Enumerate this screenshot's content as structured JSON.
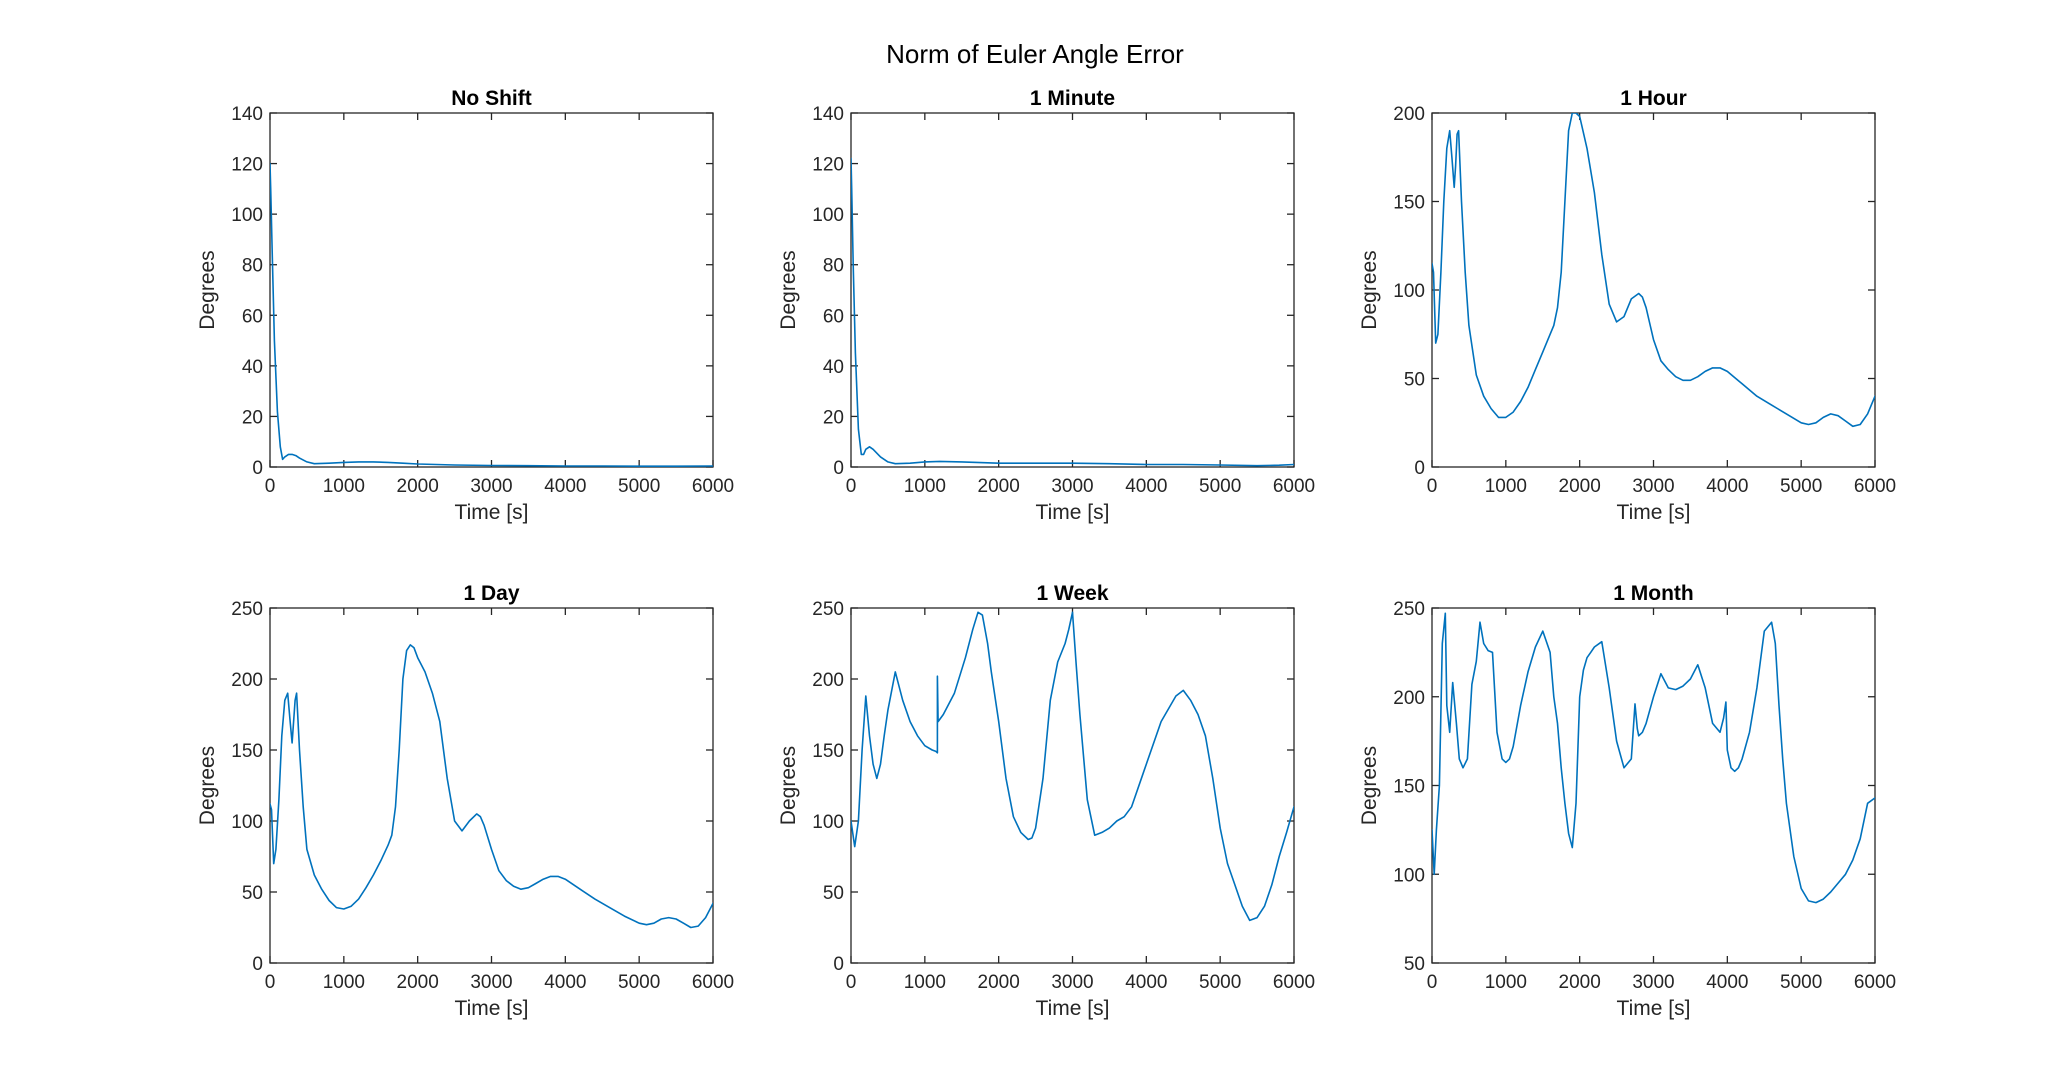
{
  "figure": {
    "title": "Norm of Euler Angle Error",
    "line_color": "#0072BD"
  },
  "chart_data": [
    {
      "type": "line",
      "title": "No Shift",
      "xlabel": "Time [s]",
      "ylabel": "Degrees",
      "xlim": [
        0,
        6000
      ],
      "ylim": [
        0,
        140
      ],
      "xticks": [
        0,
        1000,
        2000,
        3000,
        4000,
        5000,
        6000
      ],
      "yticks": [
        0,
        20,
        40,
        60,
        80,
        100,
        120,
        140
      ],
      "grid": false,
      "series": [
        {
          "x": [
            0,
            10,
            30,
            60,
            100,
            140,
            170,
            200,
            250,
            300,
            350,
            400,
            500,
            600,
            800,
            1000,
            1200,
            1400,
            1600,
            1800,
            2000,
            2500,
            3000,
            3500,
            4000,
            4500,
            5000,
            5500,
            6000
          ],
          "y": [
            120,
            110,
            85,
            50,
            22,
            8,
            3,
            4,
            5,
            5,
            4.5,
            3.5,
            2,
            1.3,
            1.5,
            1.8,
            2,
            2,
            1.8,
            1.5,
            1.2,
            0.8,
            0.6,
            0.5,
            0.4,
            0.4,
            0.3,
            0.3,
            0.4
          ]
        }
      ]
    },
    {
      "type": "line",
      "title": "1 Minute",
      "xlabel": "Time [s]",
      "ylabel": "Degrees",
      "xlim": [
        0,
        6000
      ],
      "ylim": [
        0,
        140
      ],
      "xticks": [
        0,
        1000,
        2000,
        3000,
        4000,
        5000,
        6000
      ],
      "yticks": [
        0,
        20,
        40,
        60,
        80,
        100,
        120,
        140
      ],
      "grid": false,
      "series": [
        {
          "x": [
            0,
            10,
            30,
            60,
            100,
            140,
            170,
            200,
            250,
            300,
            400,
            500,
            600,
            800,
            1000,
            1200,
            1500,
            2000,
            2500,
            3000,
            3500,
            4000,
            4500,
            5000,
            5500,
            5800,
            6000
          ],
          "y": [
            122,
            110,
            80,
            45,
            15,
            5,
            5,
            7,
            8,
            7,
            4,
            2,
            1.3,
            1.5,
            2,
            2.2,
            2,
            1.5,
            1.5,
            1.5,
            1.3,
            1,
            1,
            0.8,
            0.5,
            0.7,
            1
          ]
        }
      ]
    },
    {
      "type": "line",
      "title": "1 Hour",
      "xlabel": "Time [s]",
      "ylabel": "Degrees",
      "xlim": [
        0,
        6000
      ],
      "ylim": [
        0,
        200
      ],
      "xticks": [
        0,
        1000,
        2000,
        3000,
        4000,
        5000,
        6000
      ],
      "yticks": [
        0,
        50,
        100,
        150,
        200
      ],
      "grid": false,
      "series": [
        {
          "x": [
            0,
            20,
            50,
            80,
            120,
            160,
            200,
            240,
            270,
            300,
            320,
            340,
            360,
            400,
            450,
            500,
            600,
            700,
            800,
            900,
            1000,
            1100,
            1200,
            1300,
            1400,
            1500,
            1600,
            1650,
            1700,
            1750,
            1800,
            1850,
            1900,
            1950,
            2000,
            2100,
            2200,
            2300,
            2400,
            2500,
            2600,
            2700,
            2800,
            2850,
            2900,
            3000,
            3100,
            3200,
            3300,
            3400,
            3500,
            3600,
            3700,
            3800,
            3900,
            4000,
            4200,
            4400,
            4600,
            4800,
            5000,
            5100,
            5200,
            5300,
            5400,
            5500,
            5600,
            5700,
            5800,
            5900,
            6000
          ],
          "y": [
            115,
            110,
            70,
            75,
            110,
            150,
            180,
            190,
            175,
            158,
            170,
            188,
            190,
            150,
            110,
            80,
            52,
            40,
            33,
            28,
            28,
            31,
            37,
            45,
            55,
            65,
            75,
            80,
            90,
            110,
            150,
            190,
            200,
            200,
            198,
            180,
            155,
            120,
            92,
            82,
            85,
            95,
            98,
            96,
            90,
            72,
            60,
            55,
            51,
            49,
            49,
            51,
            54,
            56,
            56,
            54,
            47,
            40,
            35,
            30,
            25,
            24,
            25,
            28,
            30,
            29,
            26,
            23,
            24,
            30,
            40
          ]
        }
      ]
    },
    {
      "type": "line",
      "title": "1 Day",
      "xlabel": "Time [s]",
      "ylabel": "Degrees",
      "xlim": [
        0,
        6000
      ],
      "ylim": [
        0,
        250
      ],
      "xticks": [
        0,
        1000,
        2000,
        3000,
        4000,
        5000,
        6000
      ],
      "yticks": [
        0,
        50,
        100,
        150,
        200,
        250
      ],
      "grid": false,
      "series": [
        {
          "x": [
            0,
            20,
            50,
            80,
            120,
            160,
            200,
            240,
            270,
            300,
            320,
            340,
            360,
            400,
            450,
            500,
            600,
            700,
            800,
            900,
            1000,
            1100,
            1200,
            1300,
            1400,
            1500,
            1600,
            1650,
            1700,
            1750,
            1800,
            1850,
            1900,
            1950,
            2000,
            2100,
            2200,
            2300,
            2400,
            2500,
            2600,
            2700,
            2800,
            2850,
            2900,
            3000,
            3100,
            3200,
            3300,
            3400,
            3500,
            3600,
            3700,
            3800,
            3900,
            4000,
            4200,
            4400,
            4600,
            4800,
            5000,
            5100,
            5200,
            5300,
            5400,
            5500,
            5600,
            5700,
            5800,
            5900,
            6000
          ],
          "y": [
            112,
            108,
            70,
            80,
            115,
            160,
            185,
            190,
            172,
            155,
            170,
            185,
            190,
            150,
            110,
            80,
            62,
            52,
            44,
            39,
            38,
            40,
            45,
            53,
            62,
            72,
            83,
            90,
            110,
            150,
            200,
            220,
            224,
            222,
            215,
            205,
            190,
            170,
            130,
            100,
            93,
            100,
            105,
            103,
            97,
            80,
            65,
            58,
            54,
            52,
            53,
            56,
            59,
            61,
            61,
            59,
            52,
            45,
            39,
            33,
            28,
            27,
            28,
            31,
            32,
            31,
            28,
            25,
            26,
            32,
            42
          ]
        }
      ]
    },
    {
      "type": "line",
      "title": "1 Week",
      "xlabel": "Time [s]",
      "ylabel": "Degrees",
      "xlim": [
        0,
        6000
      ],
      "ylim": [
        0,
        250
      ],
      "xticks": [
        0,
        1000,
        2000,
        3000,
        4000,
        5000,
        6000
      ],
      "yticks": [
        0,
        50,
        100,
        150,
        200,
        250
      ],
      "grid": false,
      "series": [
        {
          "x": [
            0,
            50,
            100,
            150,
            200,
            250,
            300,
            350,
            400,
            450,
            500,
            600,
            700,
            800,
            900,
            1000,
            1100,
            1150,
            1170,
            1170,
            1180,
            1250,
            1400,
            1550,
            1650,
            1720,
            1780,
            1850,
            1900,
            2000,
            2100,
            2200,
            2300,
            2400,
            2450,
            2500,
            2600,
            2700,
            2800,
            2900,
            2950,
            3000,
            3050,
            3100,
            3200,
            3300,
            3400,
            3500,
            3600,
            3700,
            3800,
            4000,
            4200,
            4400,
            4500,
            4600,
            4700,
            4800,
            4900,
            5000,
            5100,
            5200,
            5300,
            5400,
            5500,
            5600,
            5700,
            5800,
            5900,
            6000
          ],
          "y": [
            100,
            82,
            100,
            150,
            188,
            160,
            140,
            130,
            140,
            160,
            178,
            205,
            185,
            170,
            160,
            153,
            150,
            149,
            148,
            202,
            170,
            175,
            190,
            215,
            235,
            247,
            245,
            225,
            205,
            170,
            130,
            103,
            92,
            87,
            88,
            95,
            130,
            185,
            212,
            225,
            235,
            247,
            210,
            175,
            115,
            90,
            92,
            95,
            100,
            103,
            110,
            140,
            170,
            188,
            192,
            185,
            175,
            160,
            130,
            95,
            70,
            55,
            40,
            30,
            32,
            40,
            55,
            75,
            92,
            110
          ]
        }
      ]
    },
    {
      "type": "line",
      "title": "1 Month",
      "xlabel": "Time [s]",
      "ylabel": "Degrees",
      "xlim": [
        0,
        6000
      ],
      "ylim": [
        50,
        250
      ],
      "xticks": [
        0,
        1000,
        2000,
        3000,
        4000,
        5000,
        6000
      ],
      "yticks": [
        50,
        100,
        150,
        200,
        250
      ],
      "grid": false,
      "series": [
        {
          "x": [
            0,
            30,
            60,
            100,
            140,
            180,
            200,
            240,
            280,
            330,
            370,
            420,
            480,
            540,
            600,
            650,
            700,
            760,
            820,
            880,
            950,
            1000,
            1050,
            1100,
            1200,
            1300,
            1400,
            1500,
            1600,
            1650,
            1700,
            1750,
            1800,
            1850,
            1900,
            1950,
            2000,
            2050,
            2100,
            2150,
            2200,
            2300,
            2400,
            2500,
            2600,
            2700,
            2750,
            2780,
            2800,
            2850,
            2900,
            3000,
            3100,
            3200,
            3300,
            3400,
            3500,
            3600,
            3700,
            3800,
            3900,
            3950,
            3980,
            4000,
            4050,
            4100,
            4150,
            4200,
            4300,
            4400,
            4500,
            4600,
            4650,
            4700,
            4750,
            4800,
            4900,
            5000,
            5100,
            5200,
            5300,
            5400,
            5500,
            5600,
            5700,
            5800,
            5900,
            6000
          ],
          "y": [
            125,
            100,
            125,
            150,
            230,
            247,
            195,
            180,
            208,
            185,
            165,
            160,
            165,
            207,
            220,
            242,
            230,
            226,
            225,
            180,
            165,
            163,
            165,
            172,
            195,
            214,
            228,
            237,
            225,
            200,
            185,
            160,
            140,
            123,
            115,
            140,
            200,
            215,
            222,
            225,
            228,
            231,
            205,
            175,
            160,
            165,
            196,
            182,
            178,
            180,
            185,
            200,
            213,
            205,
            204,
            206,
            210,
            218,
            205,
            185,
            180,
            188,
            197,
            170,
            160,
            158,
            160,
            165,
            180,
            205,
            237,
            242,
            230,
            195,
            165,
            140,
            110,
            92,
            85,
            84,
            86,
            90,
            95,
            100,
            108,
            120,
            140,
            143
          ]
        }
      ]
    }
  ]
}
